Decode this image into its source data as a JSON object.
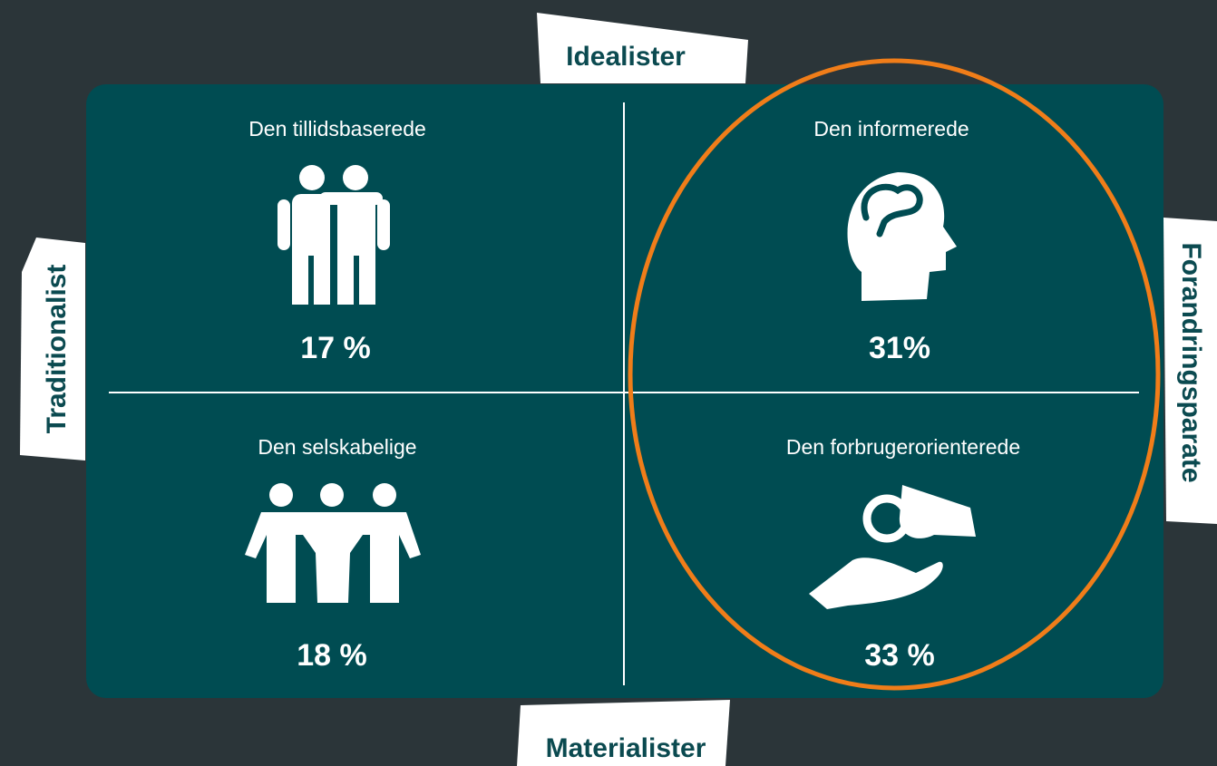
{
  "axes": {
    "top": "Idealister",
    "bottom": "Materialister",
    "left": "Traditionalist",
    "right": "Forandringsparate"
  },
  "quadrants": [
    {
      "title": "Den tillidsbaserede",
      "value": "17 %"
    },
    {
      "title": "Den informerede",
      "value": "31%"
    },
    {
      "title": "Den selskabelige",
      "value": "18 %"
    },
    {
      "title": "Den forbrugerorienterede",
      "value": "33 %"
    }
  ]
}
